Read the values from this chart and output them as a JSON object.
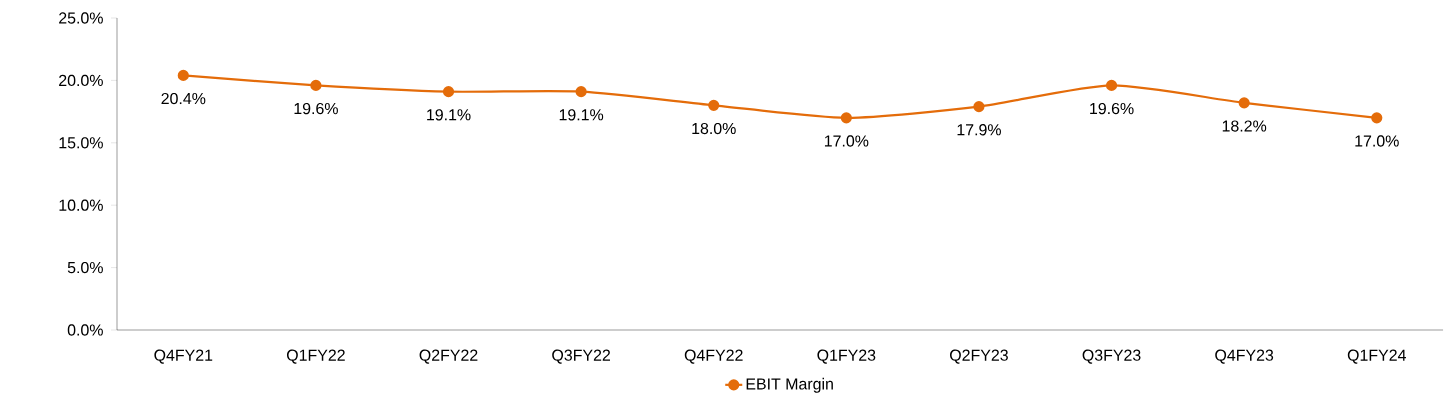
{
  "chart_data": {
    "type": "line",
    "categories": [
      "Q4FY21",
      "Q1FY22",
      "Q2FY22",
      "Q3FY22",
      "Q4FY22",
      "Q1FY23",
      "Q2FY23",
      "Q3FY23",
      "Q4FY23",
      "Q1FY24"
    ],
    "series": [
      {
        "name": "EBIT Margin",
        "color": "#e46c0a",
        "values": [
          20.4,
          19.6,
          19.1,
          19.1,
          18.0,
          17.0,
          17.9,
          19.6,
          18.2,
          17.0
        ],
        "value_labels": [
          "20.4%",
          "19.6%",
          "19.1%",
          "19.1%",
          "18.0%",
          "17.0%",
          "17.9%",
          "19.6%",
          "18.2%",
          "17.0%"
        ]
      }
    ],
    "ylim": [
      0,
      25
    ],
    "yticks": [
      {
        "value": 0,
        "label": "0.0%"
      },
      {
        "value": 5,
        "label": "5.0%"
      },
      {
        "value": 10,
        "label": "10.0%"
      },
      {
        "value": 15,
        "label": "15.0%"
      },
      {
        "value": 20,
        "label": "20.0%"
      },
      {
        "value": 25,
        "label": "25.0%"
      }
    ],
    "grid": false,
    "legend": "bottom",
    "marker": "circle",
    "line_style": "solid"
  }
}
